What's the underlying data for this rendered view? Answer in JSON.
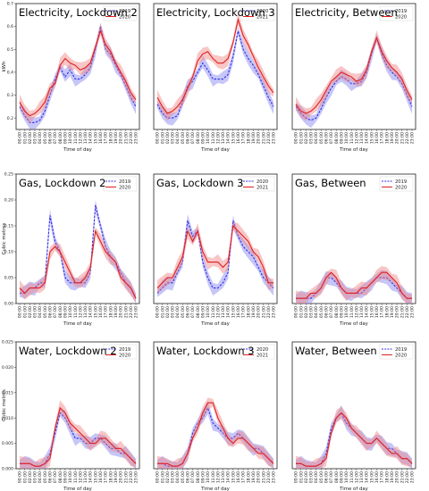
{
  "colors": {
    "series_a": "#3030e8",
    "series_b": "#e02020",
    "band_a": "#8080f0",
    "band_b": "#f08080"
  },
  "chart_data": [
    {
      "type": "line",
      "row": 0,
      "col": 0,
      "title": "Electricity, Lockdown 2",
      "ylabel": "kWh",
      "xlabel": "Time of day",
      "ylim": [
        0.15,
        0.7
      ],
      "yticks": [
        0.2,
        0.3,
        0.4,
        0.5,
        0.6,
        0.7
      ],
      "ytick_labels": [
        "0.2",
        "0.3",
        "0.4",
        "0.5",
        "0.6",
        "0.7"
      ],
      "legend": "top-right",
      "series": [
        {
          "name": "2019",
          "style": "dashed",
          "values": [
            0.25,
            0.21,
            0.18,
            0.18,
            0.19,
            0.23,
            0.3,
            0.37,
            0.42,
            0.38,
            0.41,
            0.37,
            0.37,
            0.39,
            0.42,
            0.5,
            0.6,
            0.5,
            0.48,
            0.43,
            0.39,
            0.34,
            0.29,
            0.25
          ]
        },
        {
          "name": "2020",
          "style": "solid",
          "values": [
            0.27,
            0.23,
            0.21,
            0.22,
            0.24,
            0.27,
            0.33,
            0.35,
            0.43,
            0.46,
            0.44,
            0.43,
            0.41,
            0.42,
            0.44,
            0.51,
            0.58,
            0.52,
            0.49,
            0.44,
            0.4,
            0.36,
            0.31,
            0.28
          ]
        }
      ]
    },
    {
      "type": "line",
      "row": 0,
      "col": 1,
      "title": "Electricity, Lockdown 3",
      "ylim": [
        0.15,
        0.7
      ],
      "xlabel": "Time of day",
      "legend": "top-right",
      "series": [
        {
          "name": "2020",
          "style": "dashed",
          "values": [
            0.26,
            0.22,
            0.2,
            0.2,
            0.21,
            0.27,
            0.34,
            0.36,
            0.4,
            0.44,
            0.41,
            0.37,
            0.37,
            0.37,
            0.39,
            0.47,
            0.58,
            0.5,
            0.46,
            0.43,
            0.39,
            0.34,
            0.29,
            0.25
          ]
        },
        {
          "name": "2021",
          "style": "solid",
          "values": [
            0.29,
            0.25,
            0.22,
            0.23,
            0.25,
            0.28,
            0.33,
            0.38,
            0.45,
            0.48,
            0.49,
            0.46,
            0.44,
            0.44,
            0.46,
            0.53,
            0.63,
            0.56,
            0.52,
            0.47,
            0.42,
            0.38,
            0.34,
            0.31
          ]
        }
      ]
    },
    {
      "type": "line",
      "row": 0,
      "col": 2,
      "title": "Electricity, Between",
      "ylim": [
        0.15,
        0.7
      ],
      "xlabel": "Time of day",
      "legend": "top-right",
      "series": [
        {
          "name": "2019",
          "style": "dashed",
          "values": [
            0.25,
            0.22,
            0.2,
            0.19,
            0.2,
            0.24,
            0.29,
            0.33,
            0.36,
            0.38,
            0.37,
            0.35,
            0.35,
            0.36,
            0.4,
            0.48,
            0.55,
            0.48,
            0.43,
            0.4,
            0.38,
            0.35,
            0.3,
            0.25
          ]
        },
        {
          "name": "2020",
          "style": "solid",
          "values": [
            0.26,
            0.23,
            0.22,
            0.23,
            0.25,
            0.28,
            0.32,
            0.36,
            0.38,
            0.4,
            0.39,
            0.38,
            0.36,
            0.37,
            0.41,
            0.49,
            0.55,
            0.49,
            0.45,
            0.42,
            0.4,
            0.37,
            0.32,
            0.28
          ]
        }
      ]
    },
    {
      "type": "line",
      "row": 1,
      "col": 0,
      "title": "Gas, Lockdown 2",
      "ylabel": "Cubic metres",
      "xlabel": "Time of day",
      "ylim": [
        0,
        0.25
      ],
      "yticks": [
        0,
        0.05,
        0.1,
        0.15,
        0.2,
        0.25
      ],
      "ytick_labels": [
        "0.00",
        "0.05",
        "0.10",
        "0.15",
        "0.20",
        "0.25"
      ],
      "legend": "top-right",
      "series": [
        {
          "name": "2019",
          "style": "dashed",
          "values": [
            0.02,
            0.02,
            0.03,
            0.03,
            0.04,
            0.04,
            0.17,
            0.12,
            0.1,
            0.05,
            0.04,
            0.04,
            0.04,
            0.04,
            0.06,
            0.19,
            0.15,
            0.11,
            0.09,
            0.08,
            0.06,
            0.04,
            0.03,
            0.01
          ]
        },
        {
          "name": "2020",
          "style": "solid",
          "values": [
            0.03,
            0.02,
            0.03,
            0.03,
            0.03,
            0.04,
            0.1,
            0.11,
            0.1,
            0.08,
            0.06,
            0.04,
            0.04,
            0.05,
            0.07,
            0.14,
            0.12,
            0.1,
            0.09,
            0.08,
            0.05,
            0.04,
            0.03,
            0.01
          ]
        }
      ]
    },
    {
      "type": "line",
      "row": 1,
      "col": 1,
      "title": "Gas, Lockdown 3",
      "ylim": [
        0,
        0.25
      ],
      "xlabel": "Time of day",
      "legend": "top-right",
      "series": [
        {
          "name": "2020",
          "style": "dashed",
          "values": [
            0.02,
            0.03,
            0.04,
            0.04,
            0.06,
            0.08,
            0.16,
            0.13,
            0.14,
            0.08,
            0.05,
            0.03,
            0.03,
            0.04,
            0.06,
            0.16,
            0.13,
            0.11,
            0.1,
            0.09,
            0.07,
            0.05,
            0.04,
            0.03
          ]
        },
        {
          "name": "2021",
          "style": "solid",
          "values": [
            0.03,
            0.04,
            0.05,
            0.05,
            0.07,
            0.09,
            0.14,
            0.12,
            0.14,
            0.1,
            0.08,
            0.08,
            0.08,
            0.07,
            0.08,
            0.15,
            0.14,
            0.13,
            0.12,
            0.1,
            0.09,
            0.07,
            0.04,
            0.04
          ]
        }
      ]
    },
    {
      "type": "line",
      "row": 1,
      "col": 2,
      "title": "Gas, Between",
      "ylim": [
        0,
        0.25
      ],
      "xlabel": "Time of day",
      "legend": "top-right",
      "series": [
        {
          "name": "2019",
          "style": "dashed",
          "values": [
            0.01,
            0.01,
            0.01,
            0.01,
            0.02,
            0.03,
            0.05,
            0.05,
            0.04,
            0.03,
            0.02,
            0.02,
            0.02,
            0.02,
            0.03,
            0.04,
            0.05,
            0.05,
            0.05,
            0.04,
            0.03,
            0.02,
            0.01,
            0.01
          ]
        },
        {
          "name": "2020",
          "style": "solid",
          "values": [
            0.01,
            0.01,
            0.01,
            0.02,
            0.02,
            0.03,
            0.05,
            0.06,
            0.05,
            0.03,
            0.02,
            0.02,
            0.02,
            0.03,
            0.03,
            0.04,
            0.05,
            0.06,
            0.06,
            0.05,
            0.04,
            0.02,
            0.01,
            0.01
          ]
        }
      ]
    },
    {
      "type": "line",
      "row": 2,
      "col": 0,
      "title": "Water, Lockdown 2",
      "ylabel": "Cubic metres",
      "xlabel": "Time of day",
      "ylim": [
        0,
        0.025
      ],
      "yticks": [
        0,
        0.005,
        0.01,
        0.015,
        0.02,
        0.025
      ],
      "ytick_labels": [
        "0.000",
        "0.005",
        "0.010",
        "0.015",
        "0.020",
        "0.025"
      ],
      "legend": "top-right",
      "series": [
        {
          "name": "2019",
          "style": "dashed",
          "values": [
            0.001,
            0.001,
            0.001,
            0.0005,
            0.0005,
            0.001,
            0.003,
            0.007,
            0.011,
            0.01,
            0.008,
            0.006,
            0.006,
            0.005,
            0.005,
            0.006,
            0.006,
            0.005,
            0.004,
            0.004,
            0.003,
            0.003,
            0.002,
            0.001
          ]
        },
        {
          "name": "2020",
          "style": "solid",
          "values": [
            0.001,
            0.001,
            0.001,
            0.0005,
            0.0005,
            0.001,
            0.002,
            0.008,
            0.012,
            0.011,
            0.009,
            0.008,
            0.007,
            0.006,
            0.005,
            0.005,
            0.006,
            0.006,
            0.005,
            0.004,
            0.004,
            0.003,
            0.002,
            0.001
          ]
        }
      ]
    },
    {
      "type": "line",
      "row": 2,
      "col": 1,
      "title": "Water, Lockdown 3",
      "ylim": [
        0,
        0.025
      ],
      "xlabel": "Time of day",
      "legend": "top-right",
      "series": [
        {
          "name": "2020",
          "style": "dashed",
          "values": [
            0.001,
            0.001,
            0.0005,
            0.0005,
            0.0005,
            0.001,
            0.003,
            0.007,
            0.009,
            0.01,
            0.012,
            0.009,
            0.008,
            0.007,
            0.006,
            0.006,
            0.007,
            0.006,
            0.005,
            0.004,
            0.004,
            0.003,
            0.002,
            0.001
          ]
        },
        {
          "name": "2021",
          "style": "solid",
          "values": [
            0.001,
            0.001,
            0.001,
            0.0005,
            0.0005,
            0.001,
            0.003,
            0.006,
            0.008,
            0.011,
            0.013,
            0.013,
            0.01,
            0.008,
            0.006,
            0.005,
            0.006,
            0.006,
            0.005,
            0.004,
            0.003,
            0.003,
            0.002,
            0.001
          ]
        }
      ]
    },
    {
      "type": "line",
      "row": 2,
      "col": 2,
      "title": "Water, Between",
      "ylim": [
        0,
        0.025
      ],
      "xlabel": "Time of day",
      "legend": "top-right",
      "series": [
        {
          "name": "2019",
          "style": "dashed",
          "values": [
            0.001,
            0.001,
            0.0005,
            0.0005,
            0.0005,
            0.001,
            0.003,
            0.008,
            0.01,
            0.011,
            0.009,
            0.008,
            0.007,
            0.006,
            0.005,
            0.005,
            0.006,
            0.005,
            0.004,
            0.004,
            0.003,
            0.002,
            0.002,
            0.001
          ]
        },
        {
          "name": "2020",
          "style": "solid",
          "values": [
            0.001,
            0.001,
            0.0005,
            0.0005,
            0.0005,
            0.001,
            0.002,
            0.007,
            0.01,
            0.011,
            0.01,
            0.008,
            0.007,
            0.006,
            0.005,
            0.005,
            0.006,
            0.005,
            0.004,
            0.003,
            0.003,
            0.002,
            0.002,
            0.001
          ]
        }
      ]
    }
  ],
  "xticks": [
    "00:00",
    "01:00",
    "02:00",
    "03:00",
    "04:00",
    "05:00",
    "06:00",
    "07:00",
    "08:00",
    "09:00",
    "10:00",
    "11:00",
    "12:00",
    "13:00",
    "14:00",
    "15:00",
    "16:00",
    "17:00",
    "18:00",
    "19:00",
    "20:00",
    "21:00",
    "22:00",
    "23:00"
  ]
}
